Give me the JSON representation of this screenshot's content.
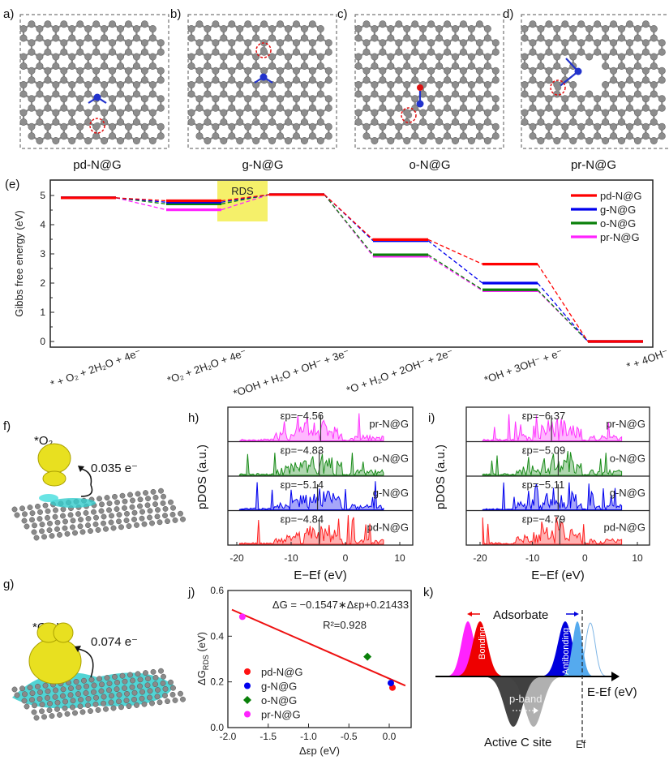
{
  "panel_letters": {
    "a": "a)",
    "b": "b)",
    "c": "c)",
    "d": "d)",
    "e": "(e)",
    "f": "f)",
    "g": "g)",
    "h": "h)",
    "i": "i)",
    "j": "j)",
    "k": "k)"
  },
  "structures": [
    {
      "label": "pd-N@G"
    },
    {
      "label": "g-N@G"
    },
    {
      "label": "o-N@G"
    },
    {
      "label": "pr-N@G"
    }
  ],
  "charge_transfer": {
    "f": {
      "adsorbate": "*O₂",
      "charge": "0.035 e⁻"
    },
    "g": {
      "adsorbate": "*OOH",
      "charge": "0.074 e⁻"
    }
  },
  "chart_data": [
    {
      "type": "line",
      "panel": "e",
      "ylabel": "Gibbs free energy (eV)",
      "ylim": [
        -0.1,
        5.5
      ],
      "yticks": [
        "0",
        "1",
        "2",
        "3",
        "4",
        "5"
      ],
      "categories": [
        "* + O₂ + 2H₂O + 4e⁻",
        "*O₂ + 2H₂O + 4e⁻",
        "*OOH + H₂O + OH⁻ + 3e⁻",
        "*O + H₂O + 2OH⁻ + 2e⁻",
        "*OH + 3OH⁻ + e⁻",
        "* + 4OH⁻"
      ],
      "annotation": "RDS",
      "legend_position": "top-right",
      "series": [
        {
          "name": "pd-N@G",
          "color": "#ff0000",
          "values": [
            4.92,
            4.82,
            5.03,
            3.49,
            2.65,
            0
          ]
        },
        {
          "name": "g-N@G",
          "color": "#0000ee",
          "values": [
            4.92,
            4.77,
            5.03,
            3.45,
            2.0,
            0
          ]
        },
        {
          "name": "o-N@G",
          "color": "#0a800a",
          "values": [
            4.92,
            4.71,
            5.03,
            2.97,
            1.77,
            0
          ]
        },
        {
          "name": "pr-N@G",
          "color": "#ff22ff",
          "values": [
            4.92,
            4.51,
            5.03,
            2.92,
            1.74,
            0
          ]
        }
      ]
    },
    {
      "type": "area",
      "panel": "h",
      "xlabel": "E−Ef (eV)",
      "ylabel": "pDOS (a.u.)",
      "xticks": [
        "-20",
        "-10",
        "0",
        "10"
      ],
      "xlim": [
        -22,
        12.5
      ],
      "series": [
        {
          "name": "pr-N@G",
          "color": "#ff33ff",
          "eps_label": "εp=−4.56",
          "eps": -4.56
        },
        {
          "name": "o-N@G",
          "color": "#1a8c1a",
          "eps_label": "εp=−4.83",
          "eps": -4.83
        },
        {
          "name": "g-N@G",
          "color": "#0000ee",
          "eps_label": "εp=−5.14",
          "eps": -5.14
        },
        {
          "name": "pd-N@G",
          "color": "#ff2020",
          "eps_label": "εp=−4.84",
          "eps": -4.84
        }
      ]
    },
    {
      "type": "area",
      "panel": "i",
      "xlabel": "E−Ef (eV)",
      "ylabel": "pDOS (a.u.)",
      "xticks": [
        "-20",
        "-10",
        "0",
        "10"
      ],
      "xlim": [
        -22,
        12.5
      ],
      "series": [
        {
          "name": "pr-N@G",
          "color": "#ff33ff",
          "eps_label": "εp=−6.37",
          "eps": -6.37
        },
        {
          "name": "o-N@G",
          "color": "#1a8c1a",
          "eps_label": "εp=−5.09",
          "eps": -5.09
        },
        {
          "name": "g-N@G",
          "color": "#0000ee",
          "eps_label": "εp=−5.11",
          "eps": -5.11
        },
        {
          "name": "pd-N@G",
          "color": "#ff2020",
          "eps_label": "εp=−4.79",
          "eps": -4.79
        }
      ]
    },
    {
      "type": "scatter",
      "panel": "j",
      "xlabel": "Δεp (eV)",
      "ylabel_main": "ΔG",
      "ylabel_sub": "RDS",
      "ylabel_unit": " (eV)",
      "xlim": [
        -2.0,
        0.27
      ],
      "ylim": [
        0,
        0.6
      ],
      "xticks": [
        "-2.0",
        "-1.5",
        "-1.0",
        "-0.5",
        "0.0"
      ],
      "yticks": [
        "0.0",
        "0.2",
        "0.4",
        "0.6"
      ],
      "equation": "ΔG = −0.1547∗Δεp+0.21433",
      "r2": "R²=0.928",
      "fit": {
        "slope": -0.1547,
        "intercept": 0.21433,
        "x_range": [
          -1.95,
          0.2
        ],
        "color": "#ee1111"
      },
      "legend_position": "bottom-left",
      "points": [
        {
          "name": "pd-N@G",
          "x": 0.04,
          "y": 0.175,
          "color": "#ff1111",
          "marker": "circle"
        },
        {
          "name": "g-N@G",
          "x": 0.02,
          "y": 0.195,
          "color": "#0000ee",
          "marker": "circle"
        },
        {
          "name": "o-N@G",
          "x": -0.27,
          "y": 0.31,
          "color": "#0a800a",
          "marker": "diamond"
        },
        {
          "name": "pr-N@G",
          "x": -1.82,
          "y": 0.485,
          "color": "#ff22ff",
          "marker": "circle"
        }
      ]
    }
  ],
  "schematic_k": {
    "adsorbate": "Adsorbate",
    "bonding": "Bonding",
    "antibonding": "Antibonding",
    "pband": "p-band",
    "axis": "E-Ef (eV)",
    "site": "Active C site",
    "fermi": "Ef"
  }
}
